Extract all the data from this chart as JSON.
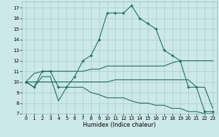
{
  "xlabel": "Humidex (Indice chaleur)",
  "bg_color": "#cce8e8",
  "grid_color": "#b0d0d0",
  "line_color": "#1a6b5a",
  "xlim": [
    -0.5,
    23.5
  ],
  "ylim": [
    7,
    17.6
  ],
  "xticks": [
    0,
    1,
    2,
    3,
    4,
    5,
    6,
    7,
    8,
    9,
    10,
    11,
    12,
    13,
    14,
    15,
    16,
    17,
    18,
    19,
    20,
    21,
    22,
    23
  ],
  "yticks": [
    7,
    8,
    9,
    10,
    11,
    12,
    13,
    14,
    15,
    16,
    17
  ],
  "line1_x": [
    0,
    1,
    2,
    3,
    4,
    5,
    6,
    7,
    8,
    9,
    10,
    11,
    12,
    13,
    14,
    15,
    16,
    17,
    18,
    19,
    20,
    21,
    22,
    23
  ],
  "line1_y": [
    10.0,
    9.5,
    11.0,
    11.0,
    9.5,
    9.5,
    10.5,
    12.0,
    12.5,
    14.0,
    16.5,
    16.5,
    16.5,
    17.2,
    16.0,
    15.5,
    15.0,
    13.0,
    12.5,
    12.0,
    9.5,
    9.5,
    7.2,
    7.2
  ],
  "line2_x": [
    0,
    1,
    2,
    3,
    4,
    5,
    6,
    7,
    8,
    9,
    10,
    11,
    12,
    13,
    14,
    15,
    16,
    17,
    18,
    19,
    20,
    21,
    22,
    23
  ],
  "line2_y": [
    10.0,
    10.8,
    11.0,
    11.0,
    11.0,
    11.0,
    11.0,
    11.0,
    11.2,
    11.2,
    11.5,
    11.5,
    11.5,
    11.5,
    11.5,
    11.5,
    11.5,
    11.5,
    11.8,
    12.0,
    12.0,
    12.0,
    12.0,
    12.0
  ],
  "line3_x": [
    0,
    1,
    2,
    3,
    4,
    5,
    6,
    7,
    8,
    9,
    10,
    11,
    12,
    13,
    14,
    15,
    16,
    17,
    18,
    19,
    20,
    21,
    22,
    23
  ],
  "line3_y": [
    10.0,
    10.0,
    10.0,
    10.0,
    10.0,
    10.0,
    10.0,
    10.0,
    10.0,
    10.0,
    10.0,
    10.2,
    10.2,
    10.2,
    10.2,
    10.2,
    10.2,
    10.2,
    10.2,
    10.2,
    10.2,
    9.5,
    9.5,
    7.5
  ],
  "line4_x": [
    0,
    1,
    2,
    3,
    4,
    5,
    6,
    7,
    8,
    9,
    10,
    11,
    12,
    13,
    14,
    15,
    16,
    17,
    18,
    19,
    20,
    21,
    22,
    23
  ],
  "line4_y": [
    10.0,
    9.5,
    10.5,
    10.5,
    8.2,
    9.5,
    9.5,
    9.5,
    9.0,
    8.8,
    8.5,
    8.5,
    8.5,
    8.2,
    8.0,
    8.0,
    7.8,
    7.8,
    7.5,
    7.5,
    7.2,
    7.2,
    7.0,
    7.0
  ]
}
